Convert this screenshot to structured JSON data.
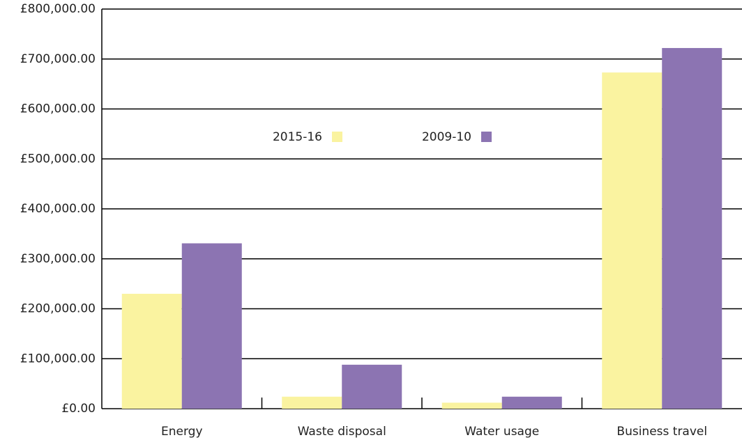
{
  "chart_data": {
    "type": "bar",
    "categories": [
      "Energy",
      "Waste disposal",
      "Water usage",
      "Business travel"
    ],
    "series": [
      {
        "name": "2015-16",
        "color": "#faf3a0",
        "values": [
          230000,
          24000,
          12000,
          673000
        ]
      },
      {
        "name": "2009-10",
        "color": "#8c74b2",
        "values": [
          331000,
          88000,
          24000,
          722000
        ]
      }
    ],
    "ylim": [
      0,
      800000
    ],
    "yticks": [
      {
        "value": 0,
        "label": "£0.00"
      },
      {
        "value": 100000,
        "label": "£100,000.00"
      },
      {
        "value": 200000,
        "label": "£200,000.00"
      },
      {
        "value": 300000,
        "label": "£300,000.00"
      },
      {
        "value": 400000,
        "label": "£400,000.00"
      },
      {
        "value": 500000,
        "label": "£500,000.00"
      },
      {
        "value": 600000,
        "label": "£600,000.00"
      },
      {
        "value": 700000,
        "label": "£700,000.00"
      },
      {
        "value": 800000,
        "label": "£800,000.00"
      }
    ],
    "grid": true
  }
}
